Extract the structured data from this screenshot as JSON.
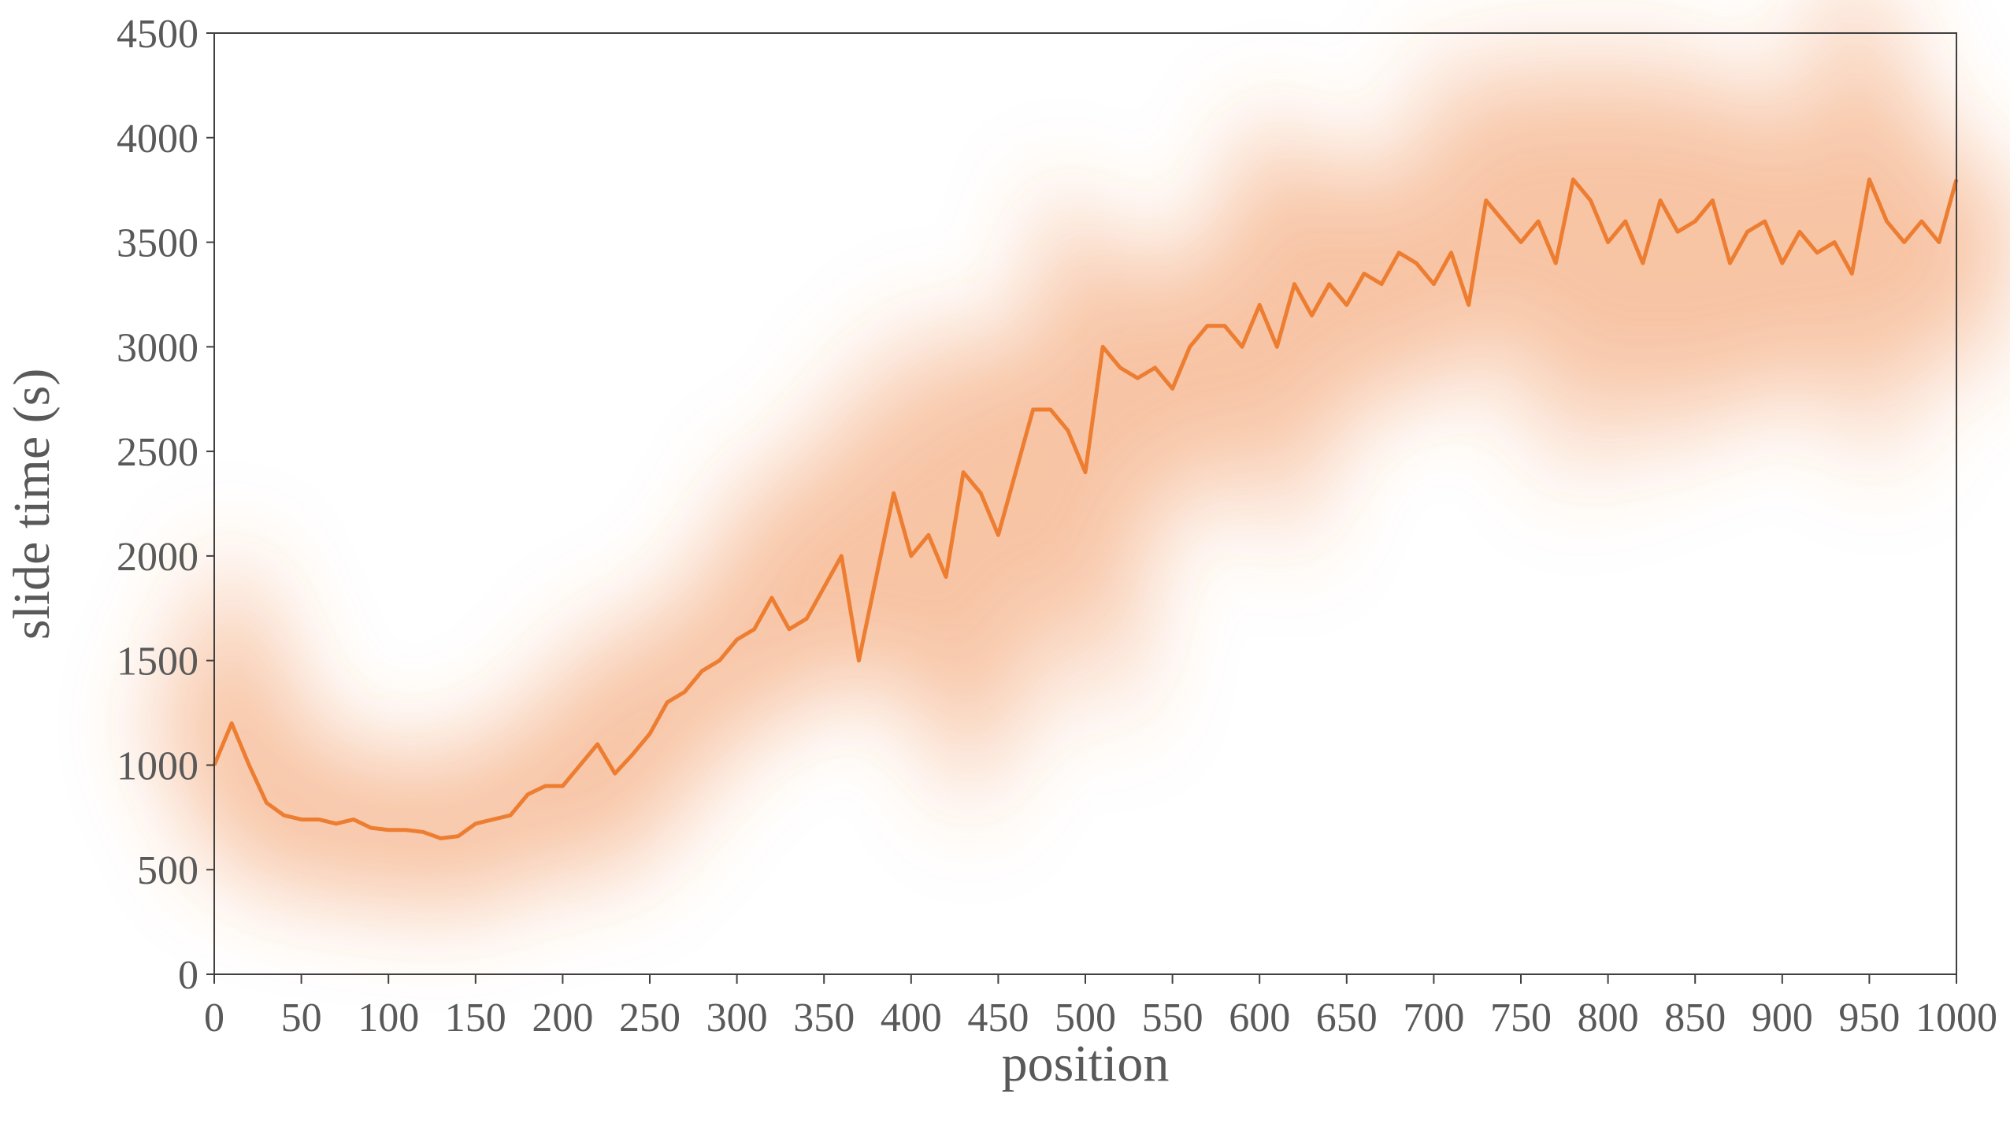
{
  "chart_data": {
    "type": "line",
    "x_label": "position",
    "y_label": "slide time (s)",
    "x": [
      0,
      10,
      20,
      30,
      40,
      50,
      60,
      70,
      80,
      90,
      100,
      110,
      120,
      130,
      140,
      150,
      160,
      170,
      180,
      190,
      200,
      210,
      220,
      230,
      240,
      250,
      260,
      270,
      280,
      290,
      300,
      310,
      320,
      330,
      340,
      350,
      360,
      370,
      380,
      390,
      400,
      410,
      420,
      430,
      440,
      450,
      460,
      470,
      480,
      490,
      500,
      510,
      520,
      530,
      540,
      550,
      560,
      570,
      580,
      590,
      600,
      610,
      620,
      630,
      640,
      650,
      660,
      670,
      680,
      690,
      700,
      710,
      720,
      730,
      740,
      750,
      760,
      770,
      780,
      790,
      800,
      810,
      820,
      830,
      840,
      850,
      860,
      870,
      880,
      890,
      900,
      910,
      920,
      930,
      940,
      950,
      960,
      970,
      980,
      990,
      1000
    ],
    "series": [
      {
        "name": "slide time",
        "color": "#ed7d31",
        "values": [
          1000,
          1200,
          1000,
          820,
          760,
          740,
          740,
          720,
          740,
          700,
          690,
          690,
          680,
          650,
          660,
          720,
          740,
          760,
          860,
          900,
          900,
          1000,
          1100,
          960,
          1050,
          1150,
          1300,
          1350,
          1450,
          1500,
          1600,
          1650,
          1800,
          1650,
          1700,
          1850,
          2000,
          1500,
          1900,
          2300,
          2000,
          2100,
          1900,
          2400,
          2300,
          2100,
          2400,
          2700,
          2700,
          2600,
          2400,
          3000,
          2900,
          2850,
          2900,
          2800,
          3000,
          3100,
          3100,
          3000,
          3200,
          3000,
          3300,
          3150,
          3300,
          3200,
          3350,
          3300,
          3450,
          3400,
          3300,
          3450,
          3200,
          3700,
          3600,
          3500,
          3600,
          3400,
          3800,
          3700,
          3500,
          3600,
          3400,
          3700,
          3550,
          3600,
          3700,
          3400,
          3550,
          3600,
          3400,
          3550,
          3450,
          3500,
          3350,
          3800,
          3600,
          3500,
          3600,
          3500,
          3800
        ]
      }
    ],
    "xlim": [
      0,
      1000
    ],
    "ylim": [
      0,
      4500
    ],
    "xticks": [
      0,
      50,
      100,
      150,
      200,
      250,
      300,
      350,
      400,
      450,
      500,
      550,
      600,
      650,
      700,
      750,
      800,
      850,
      900,
      950,
      1000
    ],
    "yticks": [
      0,
      500,
      1000,
      1500,
      2000,
      2500,
      3000,
      3500,
      4000,
      4500
    ]
  }
}
